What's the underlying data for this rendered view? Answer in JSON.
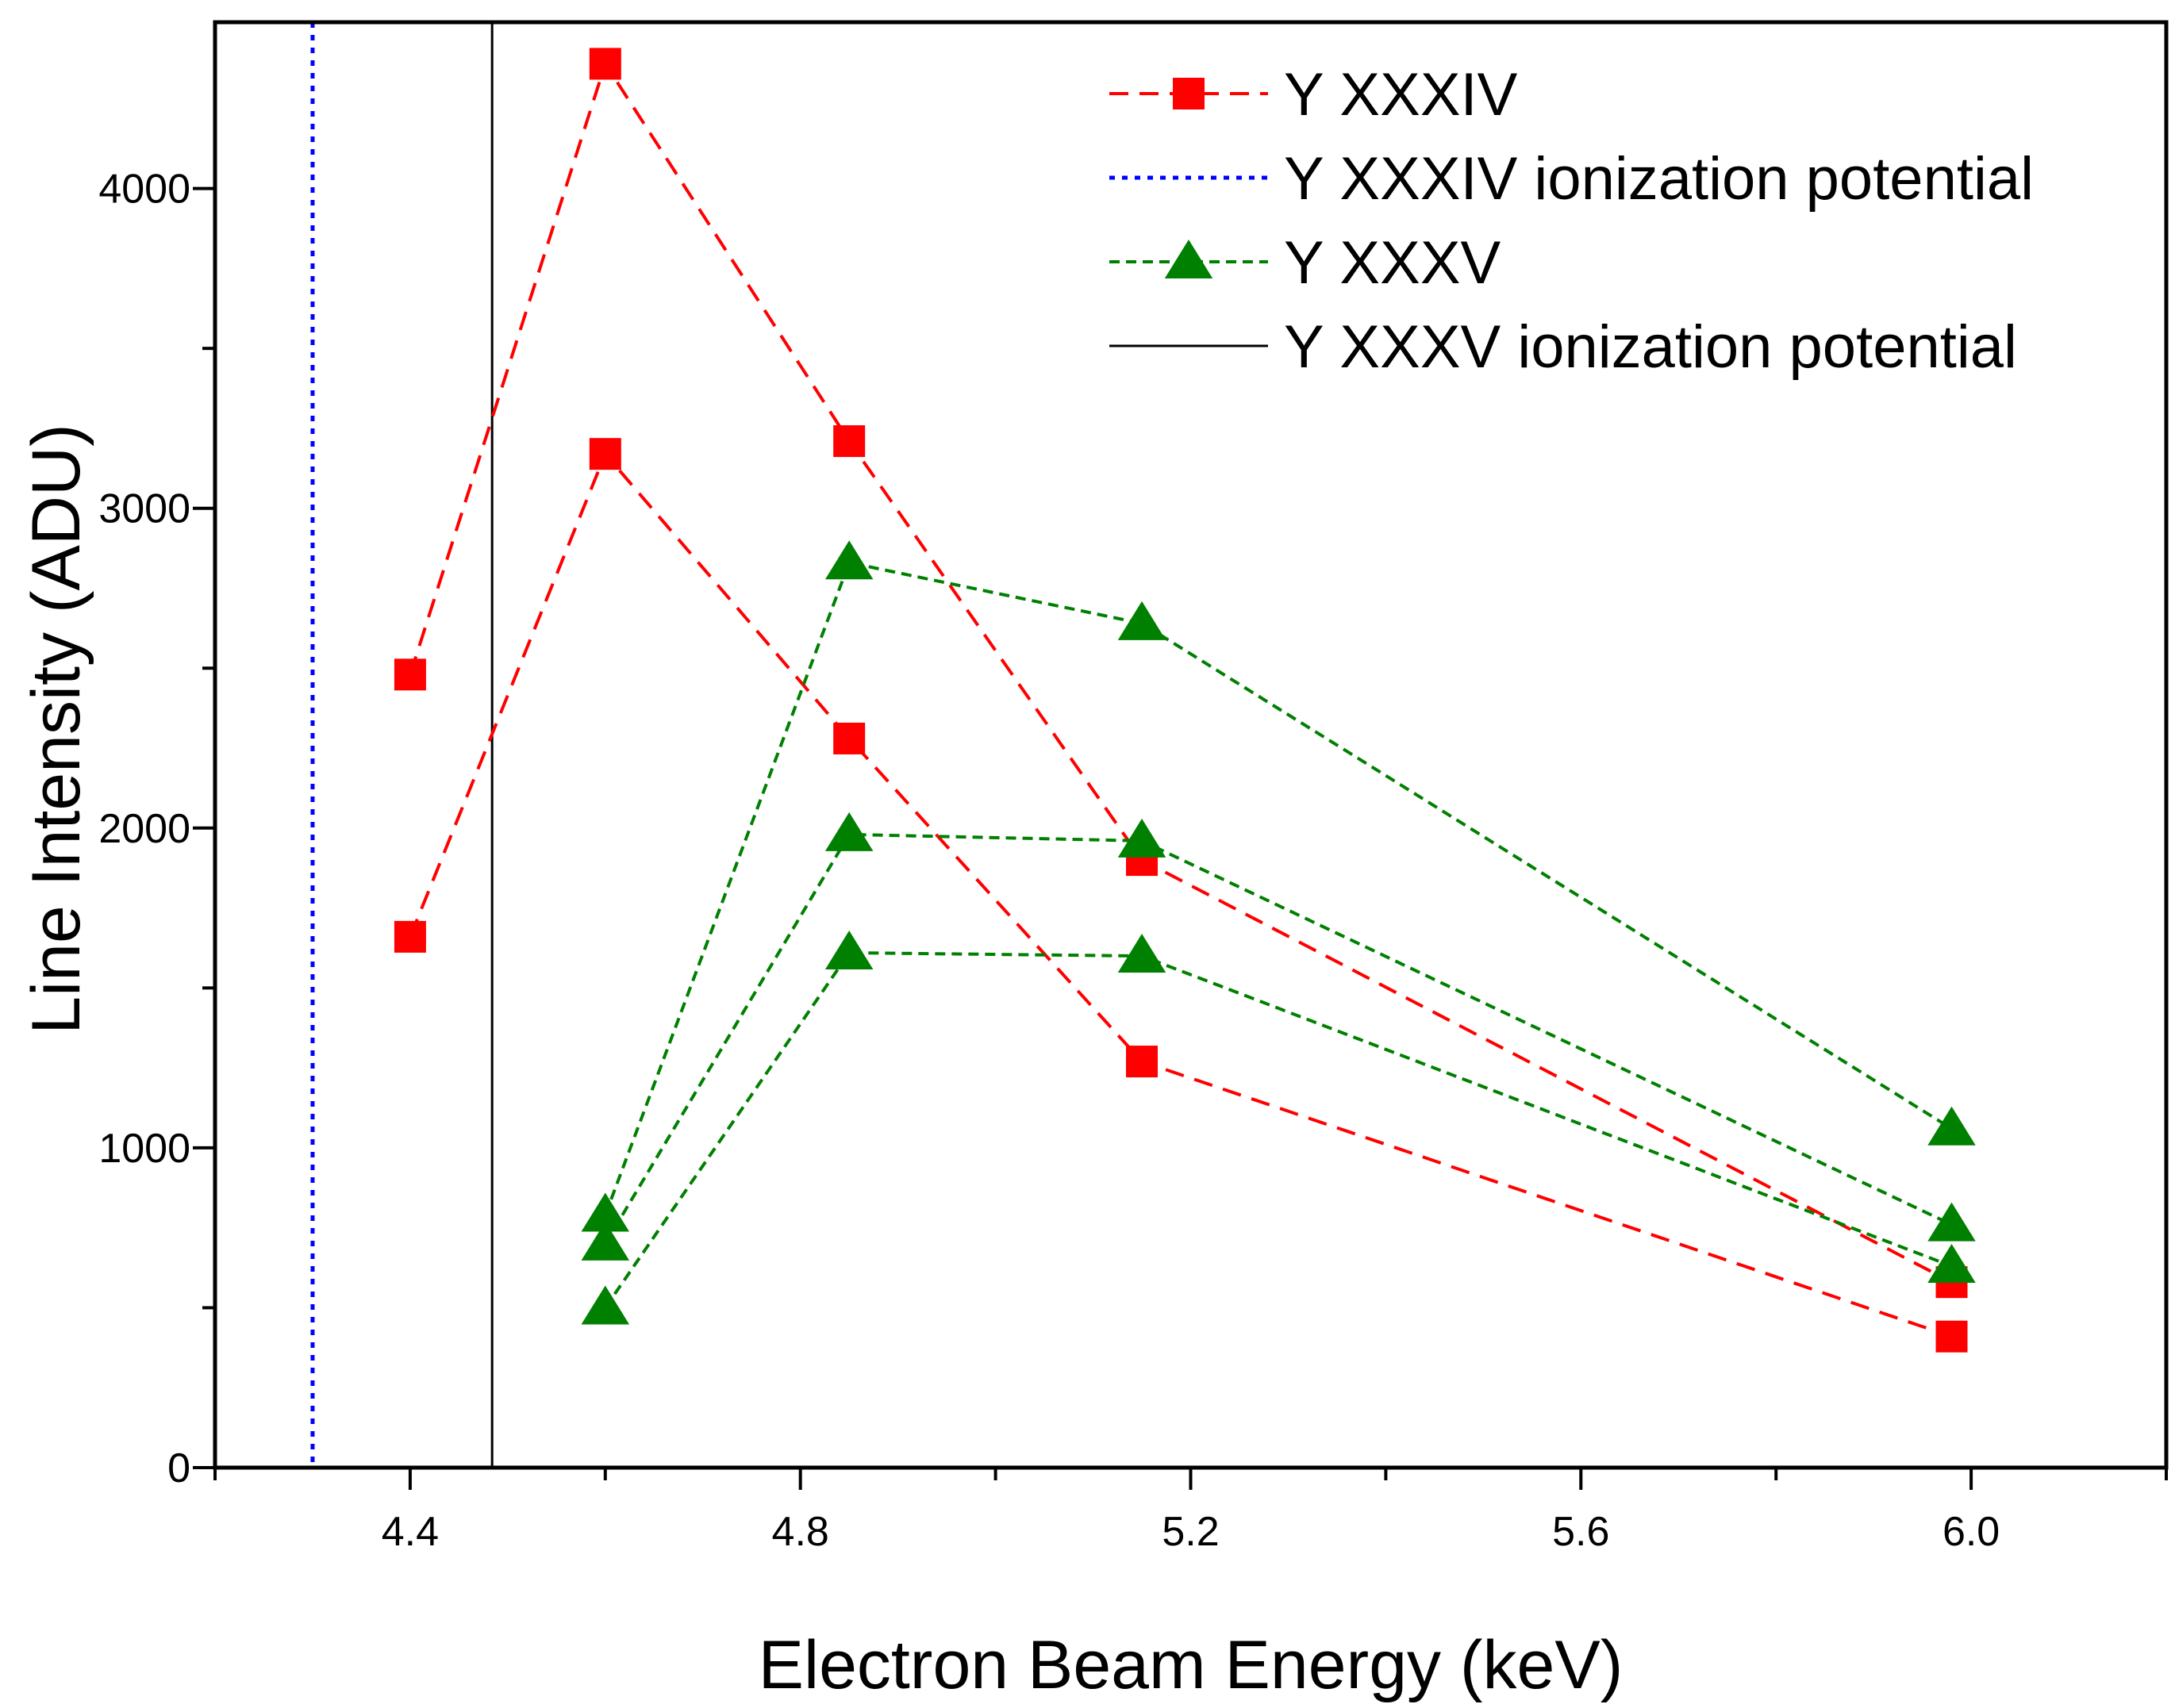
{
  "chart_data": {
    "type": "line",
    "title": "",
    "xlabel": "Electron Beam Energy (keV)",
    "ylabel": "Line Intensity (ADU)",
    "xlim": [
      4.2,
      6.2
    ],
    "ylim": [
      0,
      4520
    ],
    "x_ticks": [
      {
        "value": 4.4,
        "label": "4.4"
      },
      {
        "value": 4.8,
        "label": "4.8"
      },
      {
        "value": 5.2,
        "label": "5.2"
      },
      {
        "value": 5.6,
        "label": "5.6"
      },
      {
        "value": 6.0,
        "label": "6.0"
      }
    ],
    "x_minor_ticks": [
      4.2,
      4.6,
      5.0,
      5.4,
      5.8,
      6.2
    ],
    "y_ticks": [
      {
        "value": 0,
        "label": "0"
      },
      {
        "value": 1000,
        "label": "1000"
      },
      {
        "value": 2000,
        "label": "2000"
      },
      {
        "value": 3000,
        "label": "3000"
      },
      {
        "value": 4000,
        "label": "4000"
      }
    ],
    "y_minor_ticks": [
      500,
      1500,
      2500,
      3500
    ],
    "grid": false,
    "legend_position": "top-right",
    "legend": [
      {
        "label": "Y XXXIV",
        "style": "red-dashed-square"
      },
      {
        "label": "Y XXXIV ionization potential",
        "style": "blue-dotted"
      },
      {
        "label": "Y XXXV",
        "style": "green-dashed-triangle"
      },
      {
        "label": "Y XXXV ionization potential",
        "style": "black-solid"
      }
    ],
    "vertical_lines": [
      {
        "x": 4.3,
        "color": "#0000ff",
        "style": "dotted"
      },
      {
        "x": 4.484,
        "color": "#000000",
        "style": "solid"
      }
    ],
    "series": [
      {
        "group": "Y XXXIV",
        "color": "#ff0000",
        "marker": "square",
        "points": [
          [
            4.4,
            2480
          ],
          [
            4.6,
            4390
          ],
          [
            4.85,
            3210
          ],
          [
            5.15,
            1900
          ],
          [
            5.98,
            580
          ]
        ]
      },
      {
        "group": "Y XXXIV",
        "color": "#ff0000",
        "marker": "square",
        "points": [
          [
            4.4,
            1660
          ],
          [
            4.6,
            3170
          ],
          [
            4.85,
            2280
          ],
          [
            5.15,
            1270
          ],
          [
            5.98,
            410
          ]
        ]
      },
      {
        "group": "Y XXXV",
        "color": "#008000",
        "marker": "triangle",
        "points": [
          [
            4.6,
            790
          ],
          [
            4.85,
            2830
          ],
          [
            5.15,
            2640
          ],
          [
            5.98,
            1060
          ]
        ]
      },
      {
        "group": "Y XXXV",
        "color": "#008000",
        "marker": "triangle",
        "points": [
          [
            4.6,
            700
          ],
          [
            4.85,
            1980
          ],
          [
            5.15,
            1960
          ],
          [
            5.98,
            760
          ]
        ]
      },
      {
        "group": "Y XXXV",
        "color": "#008000",
        "marker": "triangle",
        "points": [
          [
            4.6,
            500
          ],
          [
            4.85,
            1610
          ],
          [
            5.15,
            1600
          ],
          [
            5.98,
            630
          ]
        ]
      }
    ]
  }
}
